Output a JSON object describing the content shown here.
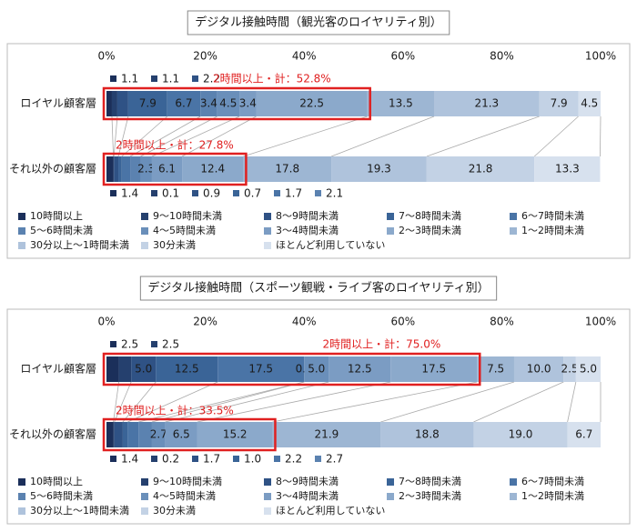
{
  "chart_data": [
    {
      "type": "bar",
      "orientation": "horizontal",
      "stacked": true,
      "title": "デジタル接触時間（観光客のロイヤリティ別）",
      "categories": [
        "ロイヤル顧客層",
        "それ以外の顧客層"
      ],
      "annotations": [
        "2時間以上・計：52.8%",
        "2時間以上・計：27.8%"
      ],
      "xlim": [
        0,
        100
      ],
      "xticks": [
        {
          "value": 0,
          "label": "0%"
        },
        {
          "value": 20,
          "label": "20%"
        },
        {
          "value": 40,
          "label": "40%"
        },
        {
          "value": 60,
          "label": "60%"
        },
        {
          "value": 80,
          "label": "80%"
        },
        {
          "value": 100,
          "label": "100%"
        }
      ],
      "series": [
        {
          "name": "10時間以上",
          "color": "#1b2f5a",
          "values": [
            1.1,
            1.4
          ],
          "value_labels": [
            "1.1",
            "1.4"
          ]
        },
        {
          "name": "9～10時間未満",
          "color": "#25406e",
          "values": [
            1.1,
            0.1
          ],
          "value_labels": [
            "1.1",
            "0.1"
          ]
        },
        {
          "name": "8～9時間未満",
          "color": "#2f5285",
          "values": [
            2.2,
            0.9
          ],
          "value_labels": [
            "2.2",
            "0.9"
          ]
        },
        {
          "name": "7～8時間未満",
          "color": "#3a6497",
          "values": [
            7.9,
            0.7
          ],
          "value_labels": [
            "7.9",
            "0.7"
          ]
        },
        {
          "name": "6～7時間未満",
          "color": "#4a74a6",
          "values": [
            6.7,
            1.7
          ],
          "value_labels": [
            "6.7",
            "1.7"
          ]
        },
        {
          "name": "5～6時間未満",
          "color": "#5b82b0",
          "values": [
            3.4,
            2.1
          ],
          "value_labels": [
            "3.4",
            "2.1"
          ]
        },
        {
          "name": "4～5時間未満",
          "color": "#6a8fba",
          "values": [
            4.5,
            2.3
          ],
          "value_labels": [
            "4.5",
            "2.3"
          ]
        },
        {
          "name": "3～4時間未満",
          "color": "#7b9cc3",
          "values": [
            3.4,
            6.1
          ],
          "value_labels": [
            "3.4",
            "6.1"
          ]
        },
        {
          "name": "2～3時間未満",
          "color": "#8ba9cb",
          "values": [
            22.5,
            12.4
          ],
          "value_labels": [
            "22.5",
            "12.4"
          ]
        },
        {
          "name": "1～2時間未満",
          "color": "#9db6d3",
          "values": [
            13.5,
            17.8
          ],
          "value_labels": [
            "13.5",
            "17.8"
          ]
        },
        {
          "name": "30分以上～1時間未満",
          "color": "#afc3dc",
          "values": [
            21.3,
            19.3
          ],
          "value_labels": [
            "21.3",
            "19.3"
          ]
        },
        {
          "name": "30分未満",
          "color": "#c3d2e5",
          "values": [
            7.9,
            21.8
          ],
          "value_labels": [
            "7.9",
            "21.8"
          ]
        },
        {
          "name": "ほとんど利用していない",
          "color": "#d7e1ee",
          "values": [
            4.5,
            13.3
          ],
          "value_labels": [
            "4.5",
            "13.3"
          ]
        }
      ]
    },
    {
      "type": "bar",
      "orientation": "horizontal",
      "stacked": true,
      "title": "デジタル接触時間（スポーツ観戦・ライブ客のロイヤリティ別）",
      "categories": [
        "ロイヤル顧客層",
        "それ以外の顧客層"
      ],
      "annotations": [
        "2時間以上・計：75.0%",
        "2時間以上・計：33.5%"
      ],
      "xlim": [
        0,
        100
      ],
      "xticks": [
        {
          "value": 0,
          "label": "0%"
        },
        {
          "value": 20,
          "label": "20%"
        },
        {
          "value": 40,
          "label": "40%"
        },
        {
          "value": 60,
          "label": "60%"
        },
        {
          "value": 80,
          "label": "80%"
        },
        {
          "value": 100,
          "label": "100%"
        }
      ],
      "series": [
        {
          "name": "10時間以上",
          "color": "#1b2f5a",
          "values": [
            2.5,
            1.4
          ],
          "value_labels": [
            "2.5",
            "1.4"
          ]
        },
        {
          "name": "9～10時間未満",
          "color": "#25406e",
          "values": [
            2.5,
            0.2
          ],
          "value_labels": [
            "2.5",
            "0.2"
          ]
        },
        {
          "name": "8～9時間未満",
          "color": "#2f5285",
          "values": [
            5,
            1.7
          ],
          "value_labels": [
            "5.0",
            "1.7"
          ]
        },
        {
          "name": "7～8時間未満",
          "color": "#3a6497",
          "values": [
            12.5,
            1
          ],
          "value_labels": [
            "12.5",
            "1.0"
          ]
        },
        {
          "name": "6～7時間未満",
          "color": "#4a74a6",
          "values": [
            17.5,
            2.2
          ],
          "value_labels": [
            "17.5",
            "2.2"
          ]
        },
        {
          "name": "5～6時間未満",
          "color": "#5b82b0",
          "values": [
            0,
            2.7
          ],
          "value_labels": [
            "0.0",
            "2.7"
          ]
        },
        {
          "name": "4～5時間未満",
          "color": "#6a8fba",
          "values": [
            5,
            2.7
          ],
          "value_labels": [
            "5.0",
            "2.7"
          ]
        },
        {
          "name": "3～4時間未満",
          "color": "#7b9cc3",
          "values": [
            12.5,
            6.5
          ],
          "value_labels": [
            "12.5",
            "6.5"
          ]
        },
        {
          "name": "2～3時間未満",
          "color": "#8ba9cb",
          "values": [
            17.5,
            15.2
          ],
          "value_labels": [
            "17.5",
            "15.2"
          ]
        },
        {
          "name": "1～2時間未満",
          "color": "#9db6d3",
          "values": [
            7.5,
            21.9
          ],
          "value_labels": [
            "7.5",
            "21.9"
          ]
        },
        {
          "name": "30分以上～1時間未満",
          "color": "#afc3dc",
          "values": [
            10,
            18.8
          ],
          "value_labels": [
            "10.0",
            "18.8"
          ]
        },
        {
          "name": "30分未満",
          "color": "#c3d2e5",
          "values": [
            2.5,
            19
          ],
          "value_labels": [
            "2.5",
            "19.0"
          ]
        },
        {
          "name": "ほとんど利用していない",
          "color": "#d7e1ee",
          "values": [
            5,
            6.7
          ],
          "value_labels": [
            "5.0",
            "6.7"
          ]
        }
      ]
    }
  ]
}
